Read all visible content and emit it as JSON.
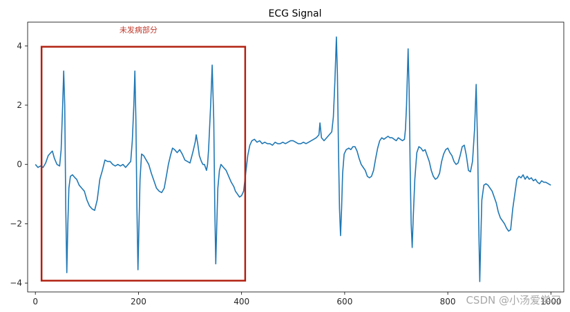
{
  "chart_data": {
    "type": "line",
    "title": "ECG Signal",
    "xlabel": "",
    "ylabel": "",
    "xlim": [
      -15,
      1025
    ],
    "ylim": [
      -4.3,
      4.8
    ],
    "x_ticks": [
      0,
      200,
      400,
      600,
      800,
      1000
    ],
    "y_ticks": [
      -4,
      -2,
      0,
      2,
      4
    ],
    "x_tick_labels": [
      "0",
      "200",
      "400",
      "600",
      "800",
      "1000"
    ],
    "y_tick_labels": [
      "−4",
      "−2",
      "0",
      "2",
      "4"
    ],
    "grid": false,
    "series": [
      {
        "color": "#1f77b4",
        "points": [
          [
            0,
            0.0
          ],
          [
            5,
            -0.1
          ],
          [
            10,
            -0.05
          ],
          [
            15,
            -0.1
          ],
          [
            20,
            0.05
          ],
          [
            25,
            0.3
          ],
          [
            30,
            0.4
          ],
          [
            33,
            0.45
          ],
          [
            37,
            0.2
          ],
          [
            42,
            0.0
          ],
          [
            47,
            -0.05
          ],
          [
            50,
            0.5
          ],
          [
            53,
            2.0
          ],
          [
            55,
            3.15
          ],
          [
            57,
            2.0
          ],
          [
            59,
            -1.5
          ],
          [
            61,
            -3.65
          ],
          [
            63,
            -2.0
          ],
          [
            65,
            -0.8
          ],
          [
            68,
            -0.4
          ],
          [
            72,
            -0.35
          ],
          [
            77,
            -0.45
          ],
          [
            80,
            -0.5
          ],
          [
            85,
            -0.7
          ],
          [
            90,
            -0.8
          ],
          [
            95,
            -0.9
          ],
          [
            100,
            -1.2
          ],
          [
            105,
            -1.4
          ],
          [
            110,
            -1.5
          ],
          [
            115,
            -1.55
          ],
          [
            120,
            -1.2
          ],
          [
            125,
            -0.5
          ],
          [
            130,
            -0.2
          ],
          [
            135,
            0.15
          ],
          [
            140,
            0.1
          ],
          [
            145,
            0.1
          ],
          [
            150,
            0.0
          ],
          [
            155,
            -0.05
          ],
          [
            160,
            0.0
          ],
          [
            165,
            -0.05
          ],
          [
            170,
            0.0
          ],
          [
            175,
            -0.1
          ],
          [
            180,
            0.0
          ],
          [
            185,
            0.1
          ],
          [
            188,
            0.8
          ],
          [
            191,
            2.0
          ],
          [
            193,
            3.15
          ],
          [
            195,
            1.5
          ],
          [
            197,
            -1.5
          ],
          [
            199,
            -3.55
          ],
          [
            201,
            -2.0
          ],
          [
            203,
            -0.5
          ],
          [
            206,
            0.35
          ],
          [
            210,
            0.3
          ],
          [
            215,
            0.15
          ],
          [
            220,
            0.0
          ],
          [
            225,
            -0.3
          ],
          [
            230,
            -0.55
          ],
          [
            235,
            -0.8
          ],
          [
            240,
            -0.9
          ],
          [
            245,
            -0.95
          ],
          [
            250,
            -0.8
          ],
          [
            255,
            -0.3
          ],
          [
            258,
            0.0
          ],
          [
            262,
            0.3
          ],
          [
            266,
            0.55
          ],
          [
            270,
            0.5
          ],
          [
            275,
            0.4
          ],
          [
            280,
            0.5
          ],
          [
            285,
            0.35
          ],
          [
            290,
            0.15
          ],
          [
            295,
            0.1
          ],
          [
            300,
            0.05
          ],
          [
            303,
            0.25
          ],
          [
            306,
            0.45
          ],
          [
            310,
            0.75
          ],
          [
            312,
            1.0
          ],
          [
            315,
            0.7
          ],
          [
            318,
            0.3
          ],
          [
            322,
            0.1
          ],
          [
            325,
            0.0
          ],
          [
            328,
            0.0
          ],
          [
            332,
            -0.2
          ],
          [
            334,
            0.0
          ],
          [
            336,
            0.5
          ],
          [
            340,
            2.0
          ],
          [
            343,
            3.35
          ],
          [
            346,
            1.5
          ],
          [
            348,
            -1.5
          ],
          [
            350,
            -3.35
          ],
          [
            352,
            -2.0
          ],
          [
            354,
            -0.8
          ],
          [
            357,
            -0.2
          ],
          [
            360,
            0.0
          ],
          [
            365,
            -0.1
          ],
          [
            370,
            -0.2
          ],
          [
            375,
            -0.4
          ],
          [
            380,
            -0.6
          ],
          [
            385,
            -0.75
          ],
          [
            388,
            -0.9
          ],
          [
            392,
            -1.0
          ],
          [
            396,
            -1.1
          ],
          [
            400,
            -1.05
          ],
          [
            404,
            -0.9
          ],
          [
            408,
            -0.3
          ],
          [
            412,
            0.3
          ],
          [
            416,
            0.65
          ],
          [
            420,
            0.8
          ],
          [
            425,
            0.85
          ],
          [
            430,
            0.75
          ],
          [
            435,
            0.8
          ],
          [
            440,
            0.7
          ],
          [
            445,
            0.75
          ],
          [
            450,
            0.7
          ],
          [
            455,
            0.7
          ],
          [
            460,
            0.65
          ],
          [
            465,
            0.75
          ],
          [
            470,
            0.7
          ],
          [
            475,
            0.7
          ],
          [
            480,
            0.75
          ],
          [
            485,
            0.7
          ],
          [
            490,
            0.75
          ],
          [
            495,
            0.8
          ],
          [
            500,
            0.8
          ],
          [
            505,
            0.75
          ],
          [
            510,
            0.7
          ],
          [
            515,
            0.7
          ],
          [
            520,
            0.75
          ],
          [
            525,
            0.7
          ],
          [
            530,
            0.75
          ],
          [
            535,
            0.8
          ],
          [
            540,
            0.85
          ],
          [
            545,
            0.9
          ],
          [
            550,
            1.0
          ],
          [
            552,
            1.4
          ],
          [
            555,
            0.9
          ],
          [
            560,
            0.8
          ],
          [
            565,
            0.9
          ],
          [
            570,
            1.0
          ],
          [
            575,
            1.1
          ],
          [
            578,
            1.6
          ],
          [
            581,
            2.8
          ],
          [
            584,
            4.3
          ],
          [
            586,
            3.0
          ],
          [
            588,
            0.5
          ],
          [
            590,
            -1.5
          ],
          [
            592,
            -2.4
          ],
          [
            594,
            -1.5
          ],
          [
            596,
            -0.3
          ],
          [
            599,
            0.35
          ],
          [
            603,
            0.5
          ],
          [
            608,
            0.55
          ],
          [
            612,
            0.5
          ],
          [
            616,
            0.6
          ],
          [
            620,
            0.6
          ],
          [
            624,
            0.45
          ],
          [
            628,
            0.2
          ],
          [
            632,
            0.0
          ],
          [
            636,
            -0.1
          ],
          [
            640,
            -0.2
          ],
          [
            644,
            -0.4
          ],
          [
            648,
            -0.45
          ],
          [
            652,
            -0.4
          ],
          [
            656,
            -0.2
          ],
          [
            660,
            0.2
          ],
          [
            664,
            0.55
          ],
          [
            668,
            0.8
          ],
          [
            672,
            0.9
          ],
          [
            676,
            0.85
          ],
          [
            680,
            0.9
          ],
          [
            684,
            0.95
          ],
          [
            688,
            0.9
          ],
          [
            692,
            0.9
          ],
          [
            696,
            0.85
          ],
          [
            700,
            0.8
          ],
          [
            704,
            0.9
          ],
          [
            708,
            0.85
          ],
          [
            712,
            0.8
          ],
          [
            716,
            0.85
          ],
          [
            718,
            1.2
          ],
          [
            720,
            2.0
          ],
          [
            723,
            3.9
          ],
          [
            725,
            2.5
          ],
          [
            727,
            0.0
          ],
          [
            729,
            -2.0
          ],
          [
            731,
            -2.8
          ],
          [
            733,
            -1.8
          ],
          [
            736,
            -0.5
          ],
          [
            740,
            0.4
          ],
          [
            744,
            0.6
          ],
          [
            748,
            0.55
          ],
          [
            752,
            0.45
          ],
          [
            756,
            0.5
          ],
          [
            760,
            0.3
          ],
          [
            764,
            0.1
          ],
          [
            768,
            -0.2
          ],
          [
            772,
            -0.4
          ],
          [
            776,
            -0.5
          ],
          [
            780,
            -0.45
          ],
          [
            784,
            -0.3
          ],
          [
            788,
            0.1
          ],
          [
            792,
            0.35
          ],
          [
            796,
            0.5
          ],
          [
            800,
            0.55
          ],
          [
            804,
            0.4
          ],
          [
            808,
            0.3
          ],
          [
            812,
            0.1
          ],
          [
            816,
            0.0
          ],
          [
            820,
            0.05
          ],
          [
            824,
            0.3
          ],
          [
            828,
            0.6
          ],
          [
            832,
            0.65
          ],
          [
            836,
            0.3
          ],
          [
            840,
            -0.2
          ],
          [
            844,
            -0.25
          ],
          [
            848,
            0.1
          ],
          [
            852,
            1.2
          ],
          [
            855,
            2.7
          ],
          [
            858,
            0.5
          ],
          [
            860,
            -2.0
          ],
          [
            862,
            -3.95
          ],
          [
            864,
            -2.5
          ],
          [
            866,
            -1.2
          ],
          [
            870,
            -0.7
          ],
          [
            874,
            -0.65
          ],
          [
            878,
            -0.7
          ],
          [
            882,
            -0.8
          ],
          [
            886,
            -0.9
          ],
          [
            890,
            -1.1
          ],
          [
            894,
            -1.3
          ],
          [
            898,
            -1.6
          ],
          [
            902,
            -1.8
          ],
          [
            906,
            -1.9
          ],
          [
            910,
            -2.0
          ],
          [
            914,
            -2.15
          ],
          [
            918,
            -2.25
          ],
          [
            922,
            -2.2
          ],
          [
            926,
            -1.5
          ],
          [
            930,
            -1.0
          ],
          [
            934,
            -0.5
          ],
          [
            938,
            -0.4
          ],
          [
            942,
            -0.45
          ],
          [
            946,
            -0.35
          ],
          [
            950,
            -0.5
          ],
          [
            954,
            -0.4
          ],
          [
            958,
            -0.5
          ],
          [
            962,
            -0.45
          ],
          [
            966,
            -0.55
          ],
          [
            970,
            -0.5
          ],
          [
            974,
            -0.6
          ],
          [
            978,
            -0.65
          ],
          [
            982,
            -0.55
          ],
          [
            986,
            -0.6
          ],
          [
            990,
            -0.6
          ],
          [
            995,
            -0.65
          ],
          [
            1000,
            -0.7
          ]
        ]
      }
    ],
    "annotations": [
      {
        "text": "未发病部分",
        "color": "#c0392b",
        "rect_x": [
          12,
          407
        ],
        "rect_y": [
          -3.92,
          3.97
        ],
        "label_x": 200,
        "label_y": 4.45
      }
    ]
  },
  "watermark": "CSDN @小汤爱学习"
}
